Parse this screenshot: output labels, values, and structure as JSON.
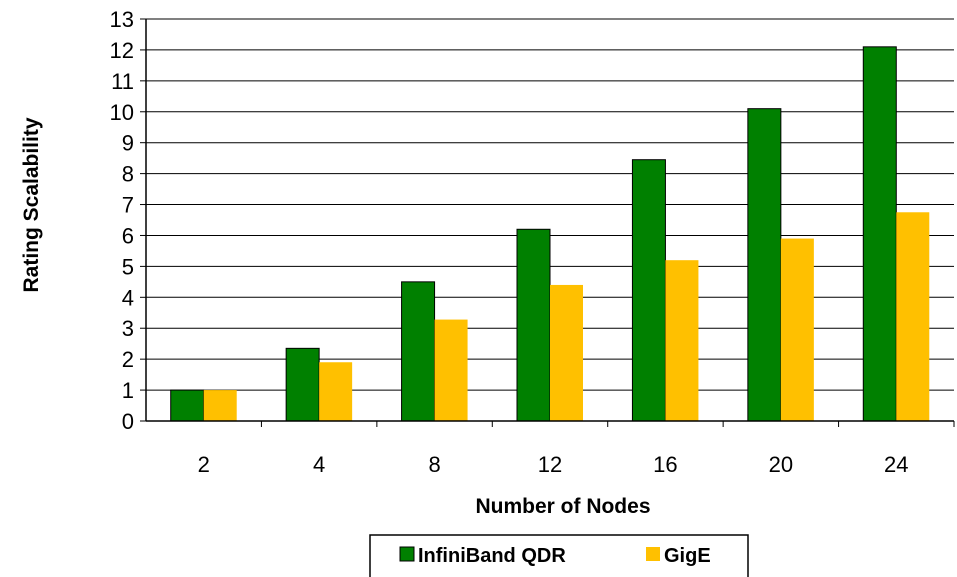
{
  "chart_data": {
    "type": "bar",
    "title": "",
    "xlabel": "Number of Nodes",
    "ylabel": "Rating Scalability",
    "ylim": [
      0,
      13
    ],
    "yticks": [
      "0",
      "1",
      "2",
      "3",
      "4",
      "5",
      "6",
      "7",
      "8",
      "9",
      "10",
      "11",
      "12",
      "13"
    ],
    "grid": true,
    "legend_position": "bottom",
    "categories": [
      "2",
      "4",
      "8",
      "12",
      "16",
      "20",
      "24"
    ],
    "series": [
      {
        "name": "InfiniBand QDR",
        "color": "#008000",
        "values": [
          1.0,
          2.35,
          4.5,
          6.2,
          8.45,
          10.1,
          12.1
        ]
      },
      {
        "name": "GigE",
        "color": "#FFC000",
        "values": [
          1.0,
          1.9,
          3.28,
          4.4,
          5.2,
          5.9,
          6.75
        ]
      }
    ]
  }
}
